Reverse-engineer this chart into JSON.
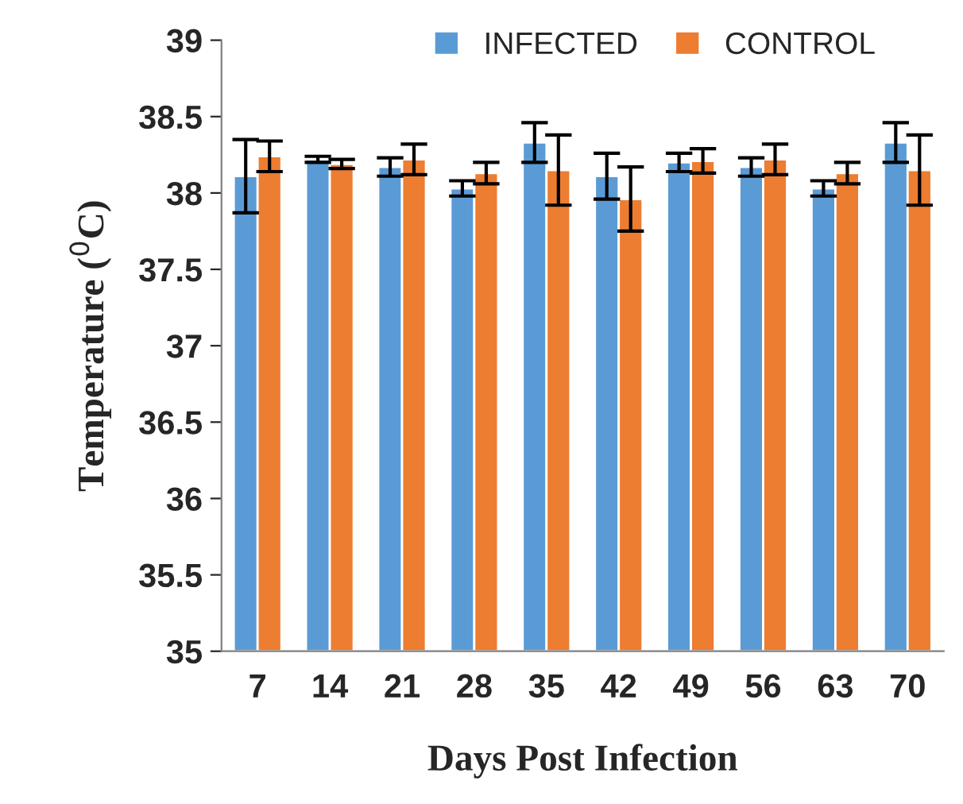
{
  "chart_data": {
    "type": "bar",
    "xlabel": "Days Post Infection",
    "ylabel": "Temperature ($^{0}$C)",
    "categories": [
      "7",
      "14",
      "21",
      "28",
      "35",
      "42",
      "49",
      "56",
      "63",
      "70"
    ],
    "series": [
      {
        "name": "INFECTED",
        "color": "#5b9bd5",
        "values": [
          38.11,
          38.22,
          38.17,
          38.03,
          38.33,
          38.11,
          38.2,
          38.17,
          38.03,
          38.33
        ],
        "errors": [
          0.24,
          0.02,
          0.06,
          0.05,
          0.13,
          0.15,
          0.06,
          0.06,
          0.05,
          0.13
        ]
      },
      {
        "name": "CONTROL",
        "color": "#ed7d31",
        "values": [
          38.24,
          38.19,
          38.22,
          38.13,
          38.15,
          37.96,
          38.21,
          38.22,
          38.13,
          38.15
        ],
        "errors": [
          0.1,
          0.03,
          0.1,
          0.07,
          0.23,
          0.21,
          0.08,
          0.1,
          0.07,
          0.23
        ]
      }
    ],
    "ylim": [
      35,
      39
    ],
    "yticks": [
      35,
      35.5,
      36,
      36.5,
      37,
      37.5,
      38,
      38.5,
      39
    ],
    "grid": false,
    "legend": "top"
  }
}
